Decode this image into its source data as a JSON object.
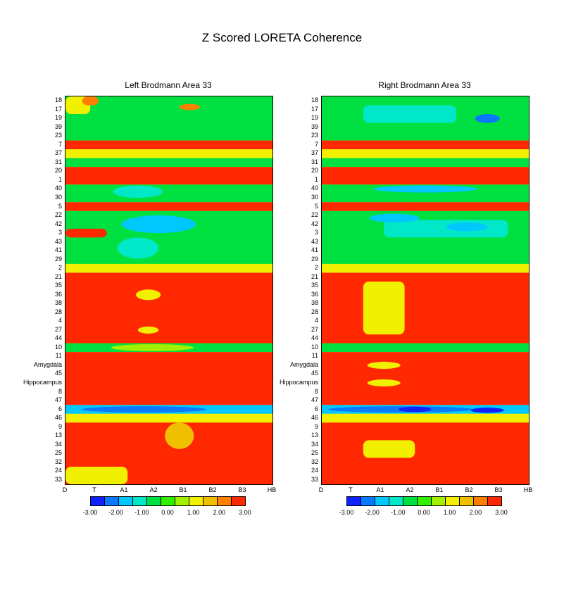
{
  "title": "Z Scored LORETA Coherence",
  "chart_data": [
    {
      "type": "heatmap",
      "title": "Left Brodmann Area 33",
      "x_labels": [
        "D",
        "T",
        "A1",
        "A2",
        "B1",
        "B2",
        "B3",
        "HB"
      ],
      "y_labels": [
        "18",
        "17",
        "19",
        "39",
        "23",
        "7",
        "37",
        "31",
        "20",
        "1",
        "40",
        "30",
        "5",
        "22",
        "42",
        "3",
        "43",
        "41",
        "29",
        "2",
        "21",
        "35",
        "36",
        "38",
        "28",
        "4",
        "27",
        "44",
        "10",
        "11",
        "Amygdala",
        "45",
        "Hippocampus",
        "8",
        "47",
        "6",
        "46",
        "9",
        "13",
        "34",
        "25",
        "32",
        "24",
        "33"
      ],
      "colorbar": {
        "ticks": [
          "-3.00",
          "-2.00",
          "-1.00",
          "0.00",
          "1.00",
          "2.00",
          "3.00"
        ],
        "range": [
          -3,
          3
        ],
        "colors": [
          "#1020ff",
          "#0a78ff",
          "#00c8ff",
          "#00e8c8",
          "#00e040",
          "#30f000",
          "#a0f000",
          "#f0f000",
          "#f0c000",
          "#ff8000",
          "#ff2800"
        ]
      }
    },
    {
      "type": "heatmap",
      "title": "Right Brodmann Area 33",
      "x_labels": [
        "D",
        "T",
        "A1",
        "A2",
        "B1",
        "B2",
        "B3",
        "HB"
      ],
      "y_labels": [
        "18",
        "17",
        "19",
        "39",
        "23",
        "7",
        "37",
        "31",
        "20",
        "1",
        "40",
        "30",
        "5",
        "22",
        "42",
        "3",
        "43",
        "41",
        "29",
        "2",
        "21",
        "35",
        "36",
        "38",
        "28",
        "4",
        "27",
        "44",
        "10",
        "11",
        "Amygdala",
        "45",
        "Hippocampus",
        "8",
        "47",
        "6",
        "46",
        "9",
        "13",
        "34",
        "25",
        "32",
        "24",
        "33"
      ],
      "colorbar": {
        "ticks": [
          "-3.00",
          "-2.00",
          "-1.00",
          "0.00",
          "1.00",
          "2.00",
          "3.00"
        ],
        "range": [
          -3,
          3
        ],
        "colors": [
          "#1020ff",
          "#0a78ff",
          "#00c8ff",
          "#00e8c8",
          "#00e040",
          "#30f000",
          "#a0f000",
          "#f0f000",
          "#f0c000",
          "#ff8000",
          "#ff2800"
        ]
      }
    }
  ]
}
